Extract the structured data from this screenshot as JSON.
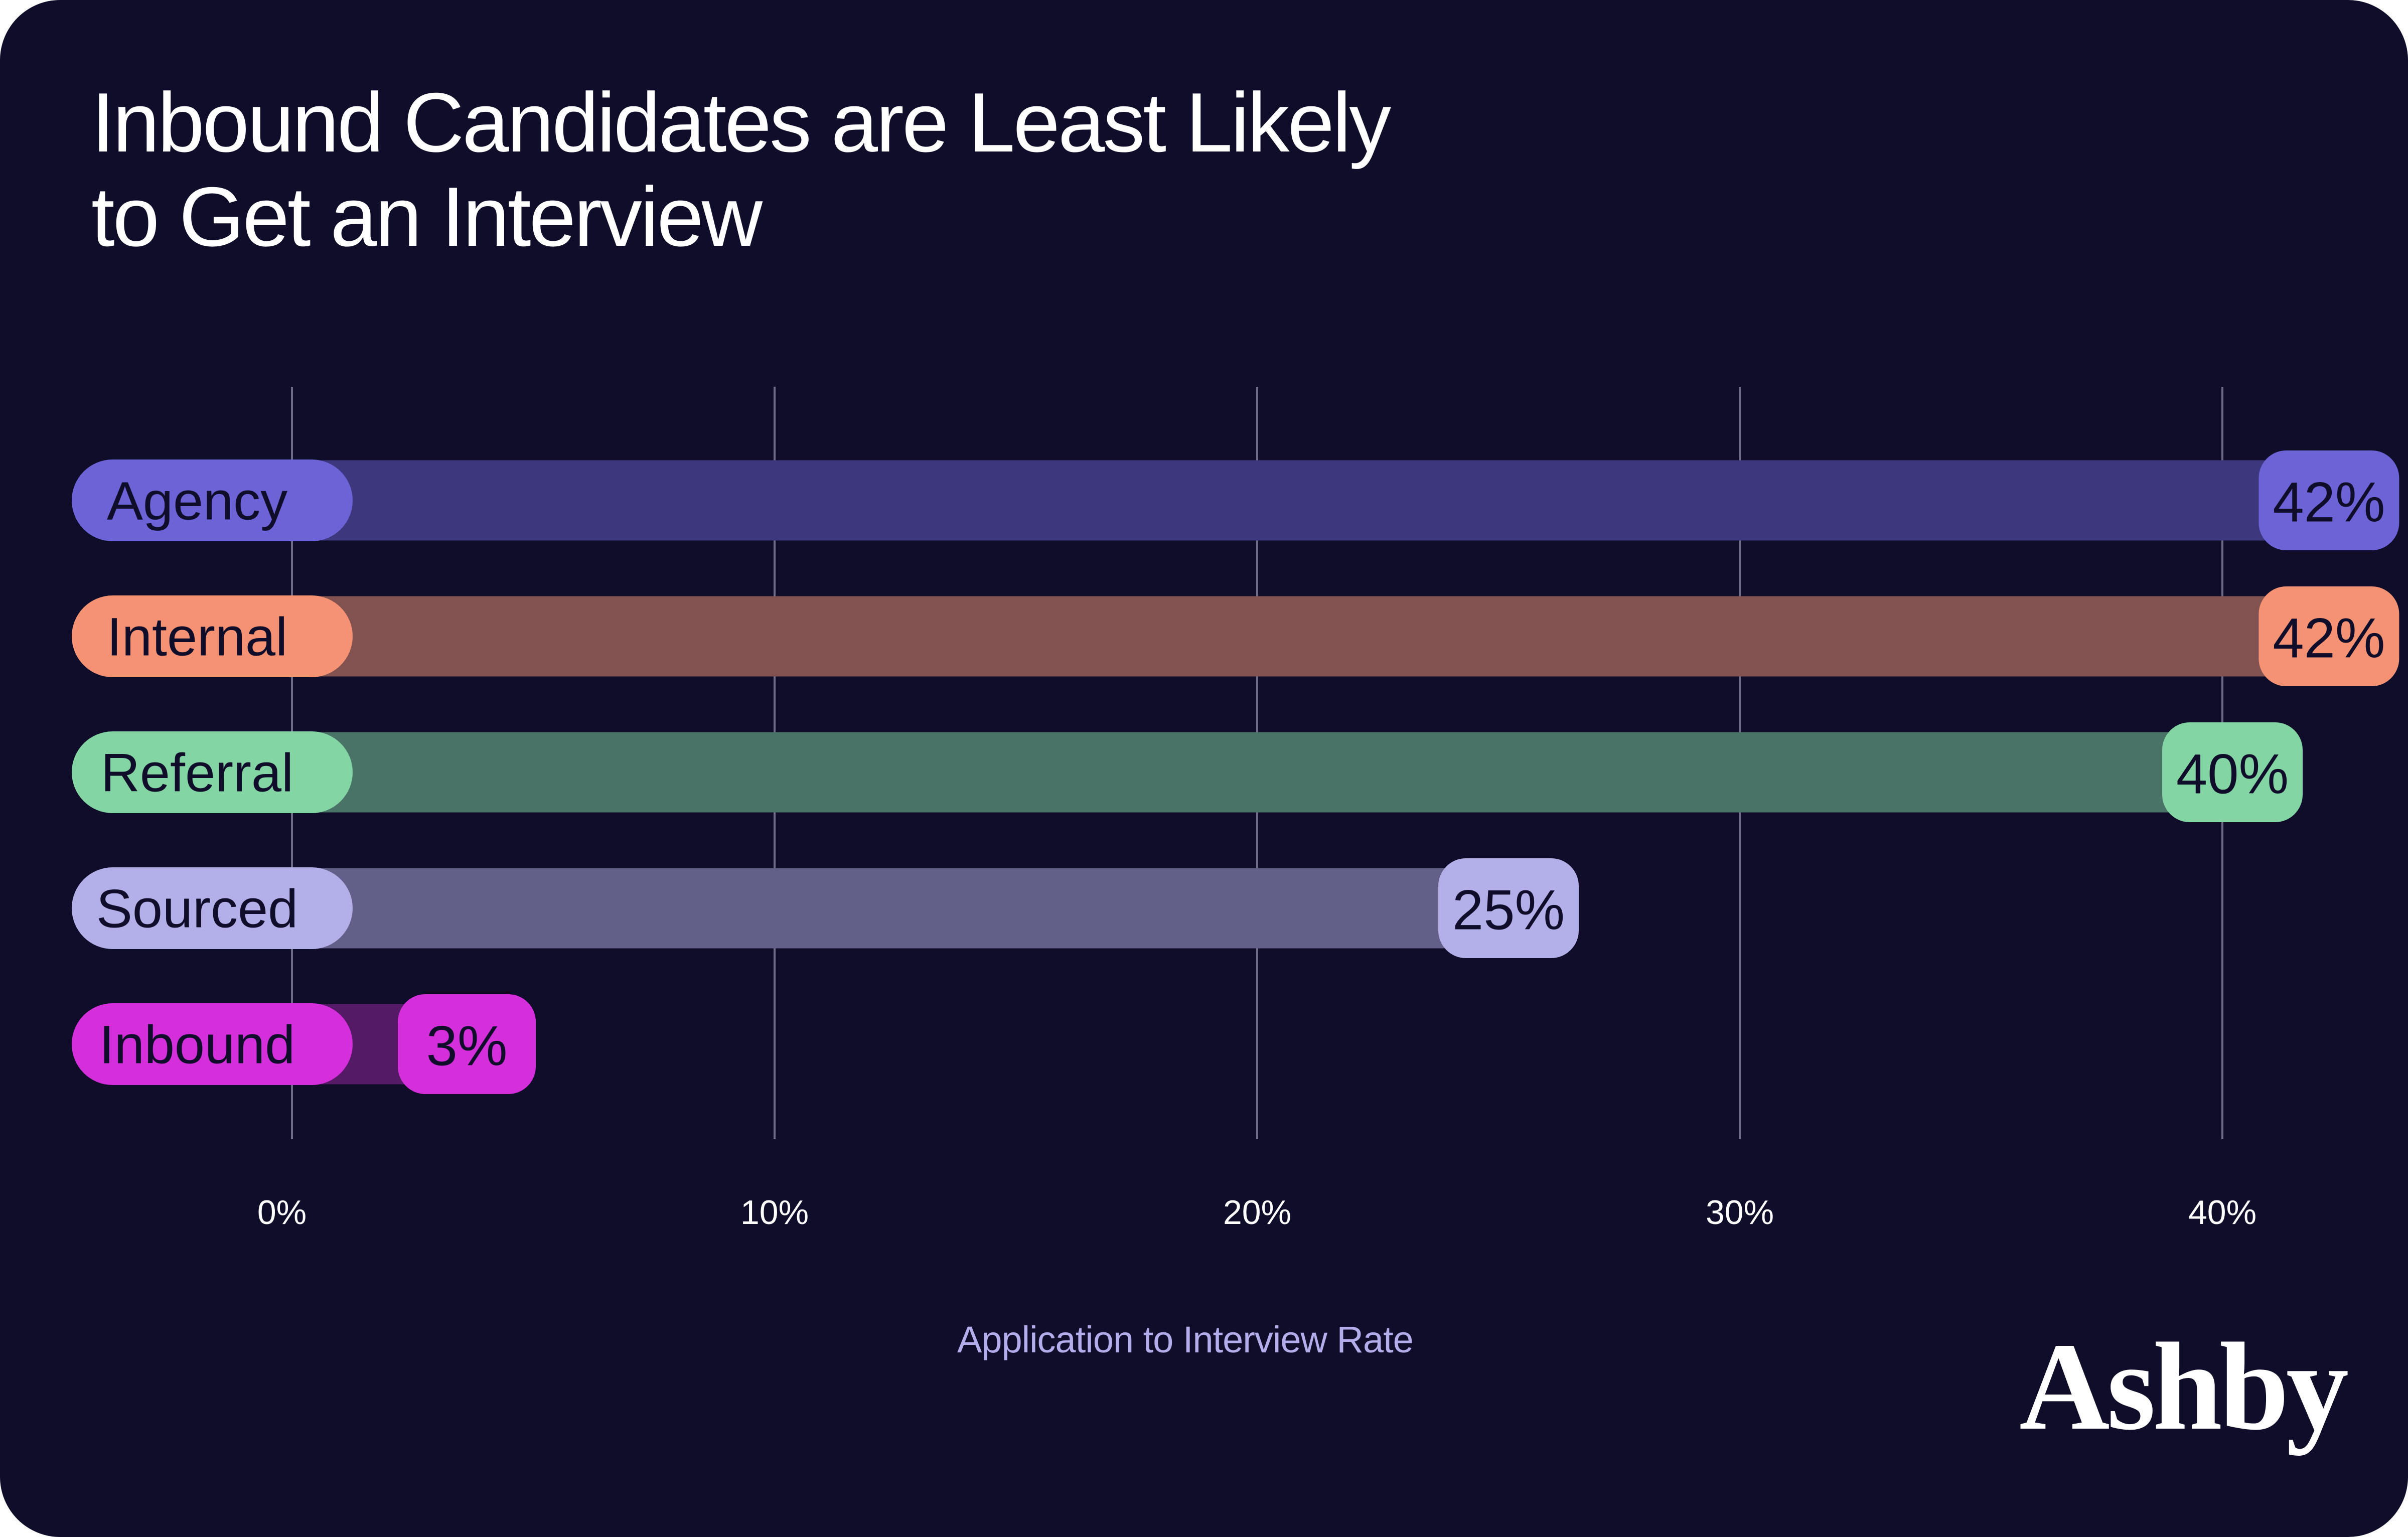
{
  "chart_data": {
    "type": "bar",
    "orientation": "horizontal",
    "title": "Inbound Candidates are Least Likely to Get an Interview",
    "title_lines": [
      "Inbound Candidates are Least Likely",
      "to Get an Interview"
    ],
    "xlabel": "Application to Interview Rate",
    "ylabel": "",
    "categories": [
      "Agency",
      "Internal",
      "Referral",
      "Sourced",
      "Inbound"
    ],
    "values": [
      42,
      42,
      40,
      25,
      3
    ],
    "value_labels": [
      "42%",
      "42%",
      "40%",
      "25%",
      "3%"
    ],
    "unit": "%",
    "xlim": [
      0,
      40
    ],
    "xticks": [
      0,
      10,
      20,
      30,
      40
    ],
    "xtick_labels": [
      "0%",
      "10%",
      "20%",
      "30%",
      "40%"
    ],
    "grid": "vertical",
    "legend": "none",
    "colors": {
      "Agency": {
        "label": "#6C63D7",
        "track": "#3D377D"
      },
      "Internal": {
        "label": "#F59274",
        "track": "#815250"
      },
      "Referral": {
        "label": "#84D5A4",
        "track": "#4A7367"
      },
      "Sourced": {
        "label": "#B3AFE8",
        "track": "#625F88"
      },
      "Inbound": {
        "label": "#D42FDB",
        "track": "#541A66"
      }
    }
  },
  "theme": {
    "background": "#0F0D29",
    "gridline": "#6E6B86",
    "text": "#FFFFFF",
    "axis_label_color": "#B3ADEB"
  },
  "brand": {
    "logo_text": "Ashby"
  }
}
